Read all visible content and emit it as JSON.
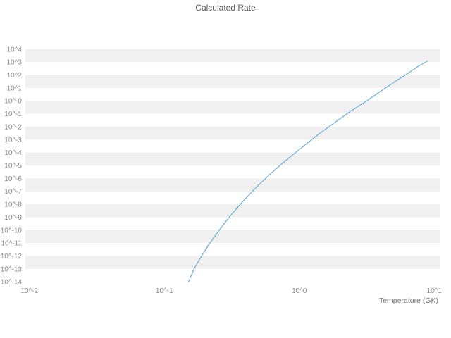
{
  "chart": {
    "title": "Calculated Rate",
    "xlabel": "Temperature (GK)",
    "x_tick_labels": [
      "10^-2",
      "10^-1",
      "10^0",
      "10^1"
    ],
    "x_tick_values": [
      -2,
      -1,
      0,
      1
    ],
    "y_tick_labels": [
      "10^4",
      "10^3",
      "10^2",
      "10^1",
      "10^-0",
      "10^-1",
      "10^-2",
      "10^-3",
      "10^-4",
      "10^-5",
      "10^-6",
      "10^-7",
      "10^-8",
      "10^-9",
      "10^-10",
      "10^-11",
      "10^-12",
      "10^-13",
      "10^-14"
    ],
    "y_tick_values": [
      4,
      3,
      2,
      1,
      0,
      -1,
      -2,
      -3,
      -4,
      -5,
      -6,
      -7,
      -8,
      -9,
      -10,
      -11,
      -12,
      -13,
      -14
    ],
    "colors": {
      "line": "#6baed6",
      "band": "#f0f0f0",
      "tick_text": "#8c8c8c",
      "title_text": "#595959",
      "background": "#ffffff"
    }
  },
  "chart_data": {
    "type": "line",
    "title": "Calculated Rate",
    "xlabel": "Temperature (GK)",
    "ylabel": "",
    "x_scale": "log",
    "y_scale": "log",
    "xlim": [
      0.01,
      10
    ],
    "ylim": [
      1e-14,
      10000.0
    ],
    "grid": "horizontal-bands",
    "legend": "none",
    "series": [
      {
        "name": "Calculated Rate",
        "x": [
          0.151,
          0.166,
          0.186,
          0.214,
          0.251,
          0.302,
          0.372,
          0.468,
          0.603,
          0.794,
          1.047,
          1.38,
          1.82,
          2.4,
          3.16,
          4.07,
          5.13,
          6.31,
          7.41,
          8.32,
          8.91
        ],
        "y": [
          1e-14,
          1e-13,
          7.9e-13,
          7.9e-12,
          7.9e-11,
          1e-09,
          1.26e-08,
          1.58e-07,
          2e-06,
          2.5e-05,
          0.00025,
          0.0025,
          0.02,
          0.158,
          1.0,
          6.3,
          31.6,
          126,
          398,
          794,
          1258
        ]
      }
    ]
  }
}
